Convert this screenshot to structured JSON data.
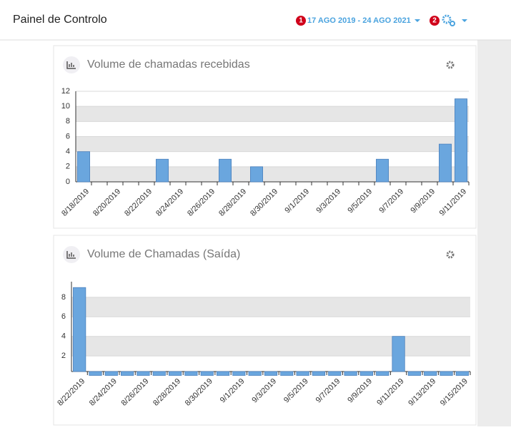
{
  "header": {
    "title": "Painel de Controlo",
    "badges": [
      "1",
      "2"
    ],
    "date_range": "17 AGO 2019 - 24 AGO 2021"
  },
  "chart_data": [
    {
      "type": "bar",
      "title": "Volume de chamadas recebidas",
      "color": "#6aa6de",
      "categories": [
        "8/18/2019",
        null,
        "8/20/2019",
        null,
        "8/22/2019",
        null,
        "8/24/2019",
        null,
        "8/26/2019",
        null,
        "8/28/2019",
        null,
        "8/30/2019",
        null,
        "9/1/2019",
        null,
        "9/3/2019",
        null,
        "9/5/2019",
        null,
        "9/7/2019",
        null,
        "9/9/2019",
        null,
        "9/11/2019"
      ],
      "values": [
        4,
        0,
        0,
        0,
        0,
        3,
        0,
        0,
        0,
        3,
        0,
        2,
        0,
        0,
        0,
        0,
        0,
        0,
        0,
        3,
        0,
        0,
        0,
        5,
        11
      ],
      "ylim": [
        0,
        12
      ],
      "yticks": [
        0,
        2,
        4,
        6,
        8,
        10,
        12
      ],
      "grid": true
    },
    {
      "type": "bar",
      "title": "Volume de Chamadas (Saída)",
      "color": "#6aa6de",
      "categories": [
        "8/22/2019",
        null,
        "8/24/2019",
        null,
        "8/26/2019",
        null,
        "8/28/2019",
        null,
        "8/30/2019",
        null,
        "9/1/2019",
        null,
        "9/3/2019",
        null,
        "9/5/2019",
        null,
        "9/7/2019",
        null,
        "9/9/2019",
        null,
        "9/11/2019",
        null,
        "9/13/2019",
        null,
        "9/15/2019"
      ],
      "values": [
        9,
        0,
        0,
        0,
        0,
        0,
        0,
        0,
        0,
        0,
        0,
        0,
        0,
        0,
        0,
        0,
        0,
        0,
        0,
        0,
        4,
        0,
        0,
        0,
        0
      ],
      "ylim": [
        0.4,
        9.6
      ],
      "yticks": [
        2,
        4,
        6,
        8
      ],
      "grid": true
    }
  ]
}
